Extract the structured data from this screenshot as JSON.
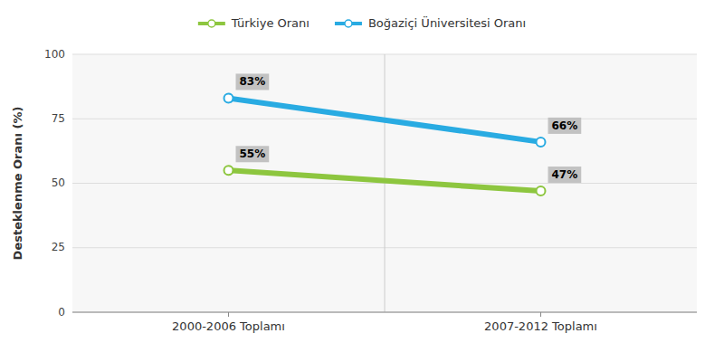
{
  "chart_data": {
    "type": "line",
    "categories": [
      "2000-2006 Toplamı",
      "2007-2012 Toplamı"
    ],
    "series": [
      {
        "name": "Türkiye Oranı",
        "color": "#8dc63f",
        "values": [
          55,
          47
        ],
        "value_labels": [
          "55%",
          "47%"
        ]
      },
      {
        "name": "Boğaziçi Üniversitesi Oranı",
        "color": "#29abe2",
        "values": [
          83,
          66
        ],
        "value_labels": [
          "83%",
          "66%"
        ]
      }
    ],
    "y_label": "Desteklenme Oranı (%)",
    "ylim": [
      0,
      100
    ],
    "yticks": [
      0,
      25,
      50,
      75,
      100
    ],
    "grid": true,
    "legend": "top",
    "marker": "circle",
    "data_labels": true
  }
}
